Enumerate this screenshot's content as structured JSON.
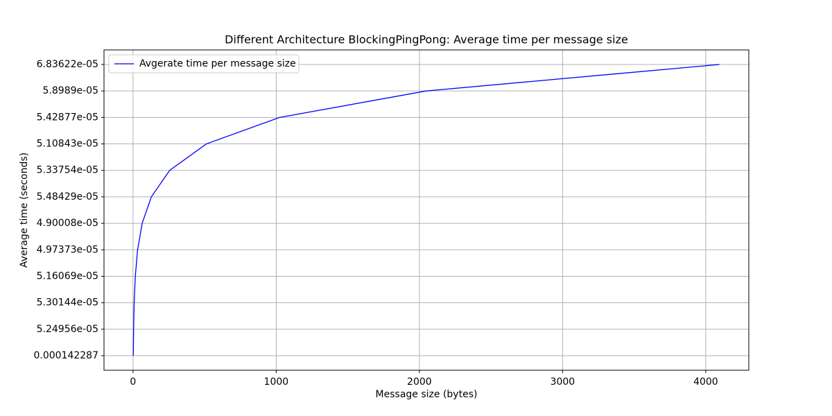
{
  "chart_data": {
    "type": "line",
    "title": "Different Architecture BlockingPingPong: Average time per message size",
    "x_label": "Message size (bytes)",
    "y_label": "Average time (seconds)",
    "x": [
      2,
      4,
      8,
      16,
      32,
      64,
      128,
      256,
      512,
      1024,
      2048,
      4096
    ],
    "y_categories": [
      "0.000142287",
      "5.24956e-05",
      "5.30144e-05",
      "5.16069e-05",
      "4.97373e-05",
      "4.90008e-05",
      "5.48429e-05",
      "5.33754e-05",
      "5.10843e-05",
      "5.42877e-05",
      "5.8989e-05",
      "6.83622e-05"
    ],
    "series": [
      {
        "name": "Avgerate time per message size",
        "color": "#0000ff",
        "values": [
          "0.000142287",
          "5.24956e-05",
          "5.30144e-05",
          "5.16069e-05",
          "4.97373e-05",
          "4.90008e-05",
          "5.48429e-05",
          "5.33754e-05",
          "5.10843e-05",
          "5.42877e-05",
          "5.8989e-05",
          "6.83622e-05"
        ]
      }
    ],
    "xlim": [
      -202.7,
      4300.7
    ],
    "xticks": [
      0,
      1000,
      2000,
      3000,
      4000
    ],
    "grid": true,
    "legend": "upper left"
  }
}
